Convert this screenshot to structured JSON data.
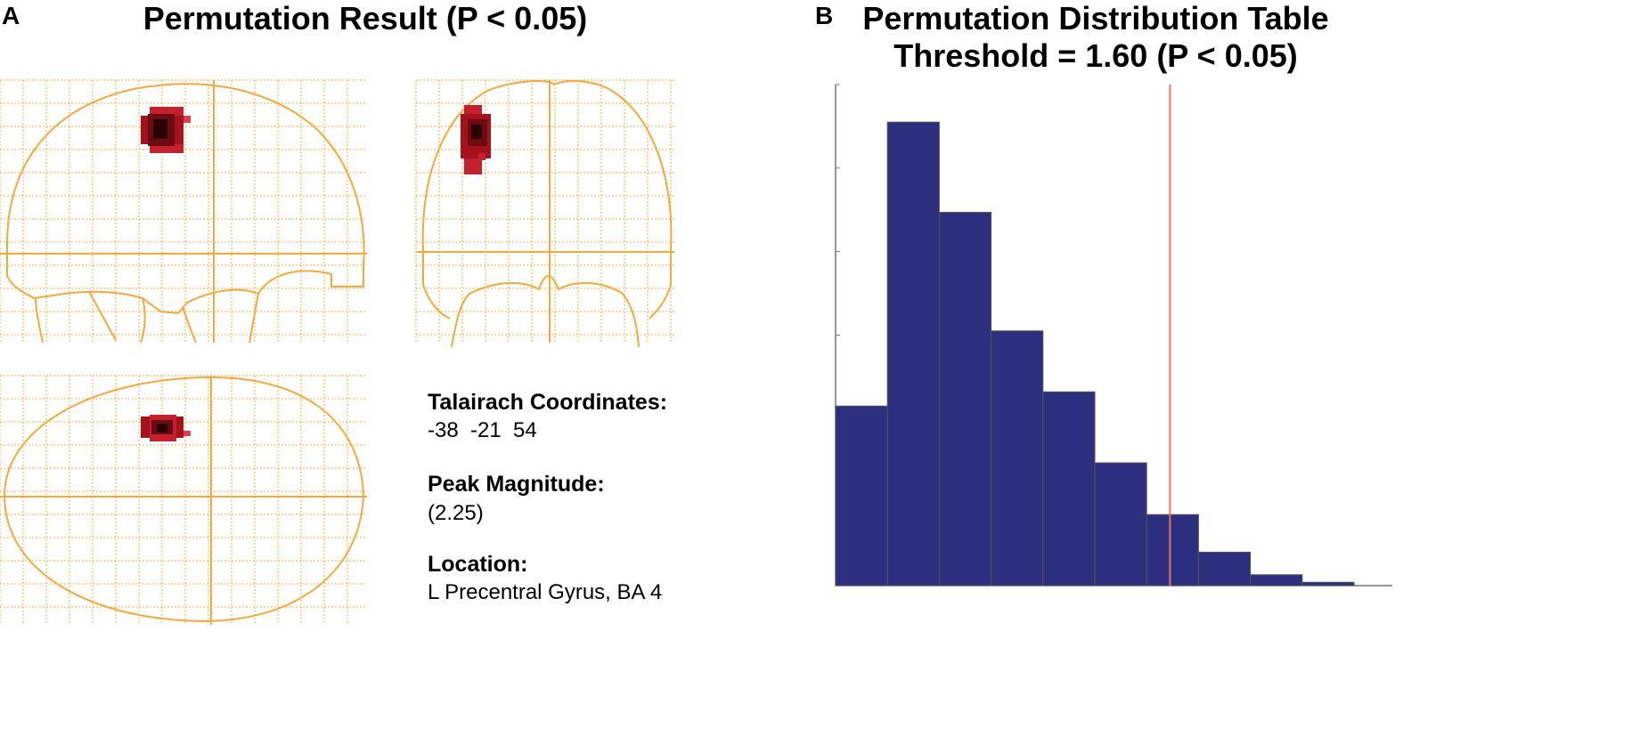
{
  "panel_a": {
    "letter": "A",
    "title": "Permutation Result (P < 0.05)",
    "info": {
      "coords_label": "Talairach Coordinates:",
      "coords_value": "-38  -21  54",
      "peak_label": "Peak Magnitude:",
      "peak_value": "(2.25)",
      "location_label": "Location:",
      "location_value": "L Precentral Gyrus, BA 4"
    }
  },
  "panel_b": {
    "letter": "B",
    "title_line1": "Permutation Distribution Table",
    "title_line2": "Threshold = 1.60 (P < 0.05)"
  },
  "colors": {
    "glass_brain": "#f5a93c",
    "activation_dark": "#8b0a14",
    "bar_fill": "#2b2f7e",
    "threshold_line": "#e8735f"
  },
  "chart_data": {
    "type": "bar",
    "title": "Permutation Distribution Table\nThreshold = 1.60 (P < 0.05)",
    "xlabel": "",
    "ylabel": "",
    "bin_edges_px_relative": null,
    "values": [
      0.215,
      0.555,
      0.447,
      0.305,
      0.232,
      0.147,
      0.085,
      0.04,
      0.013,
      0.004
    ],
    "threshold": 1.6,
    "ylim": [
      0,
      0.6
    ],
    "grid": false
  }
}
